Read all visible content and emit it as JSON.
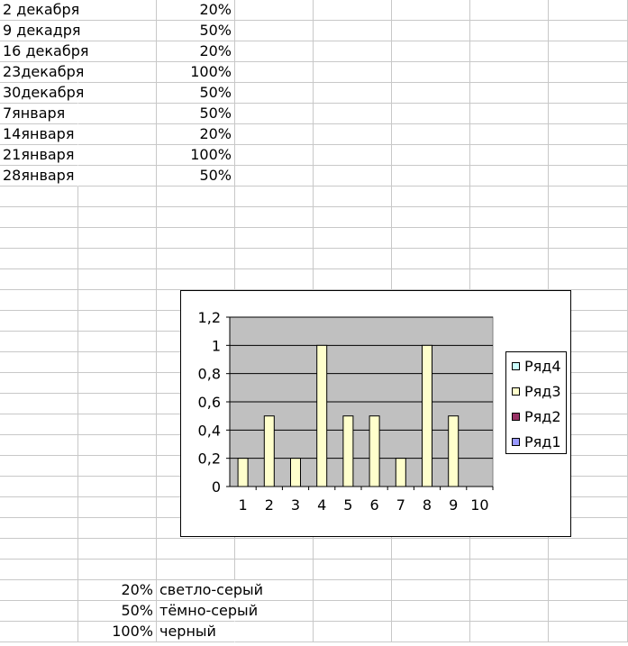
{
  "sheet": {
    "dates": [
      "2 декабря",
      "9 декадря",
      "16 декабря",
      "23декабря",
      "30декабря",
      "7января",
      "14января",
      "21января",
      "28января"
    ],
    "percents": [
      "20%",
      "50%",
      "20%",
      "100%",
      "50%",
      "50%",
      "20%",
      "100%",
      "50%"
    ],
    "legend_rows": [
      {
        "value": "20%",
        "label": "светло-серый"
      },
      {
        "value": "50%",
        "label": "тёмно-серый"
      },
      {
        "value": "100%",
        "label": "черный"
      }
    ]
  },
  "chart_data": {
    "type": "bar",
    "categories": [
      "1",
      "2",
      "3",
      "4",
      "5",
      "6",
      "7",
      "8",
      "9",
      "10"
    ],
    "series": [
      {
        "name": "Ряд4",
        "values": [
          null,
          null,
          null,
          null,
          null,
          null,
          null,
          null,
          null,
          null
        ],
        "color": "#ccffff"
      },
      {
        "name": "Ряд3",
        "values": [
          0.2,
          0.5,
          0.2,
          1,
          0.5,
          0.5,
          0.2,
          1,
          0.5,
          null
        ],
        "color": "#ffffcc"
      },
      {
        "name": "Ряд2",
        "values": [
          null,
          null,
          null,
          null,
          null,
          null,
          null,
          null,
          null,
          null
        ],
        "color": "#993366"
      },
      {
        "name": "Ряд1",
        "values": [
          null,
          null,
          null,
          null,
          null,
          null,
          null,
          null,
          null,
          null
        ],
        "color": "#9999ff"
      }
    ],
    "y_ticks": [
      "0",
      "0,2",
      "0,4",
      "0,6",
      "0,8",
      "1",
      "1,2"
    ],
    "ylim": [
      0,
      1.2
    ],
    "grid": true,
    "plot_background": "#c0c0c0",
    "legend_position": "right"
  }
}
